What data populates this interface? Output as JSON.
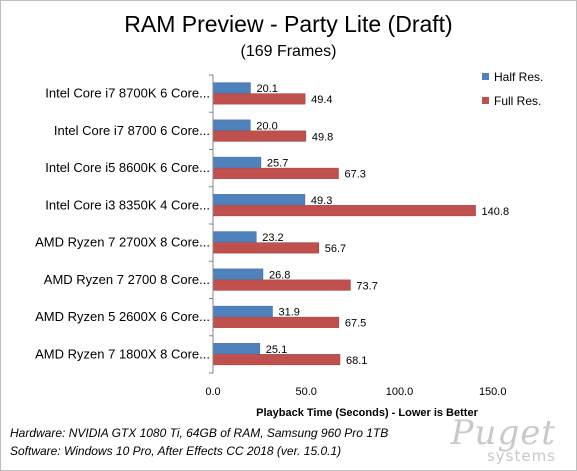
{
  "chart_data": {
    "type": "bar",
    "orientation": "horizontal",
    "title": "RAM Preview - Party Lite (Draft)",
    "subtitle": "(169 Frames)",
    "xlabel": "Playback  Time (Seconds) - Lower is Better",
    "ylabel": "",
    "xlim": [
      0,
      170
    ],
    "xticks": [
      0,
      50,
      100,
      150
    ],
    "xtick_labels": [
      "0.0",
      "50.0",
      "100.0",
      "150.0"
    ],
    "grid": false,
    "legend_position": "right",
    "categories": [
      "Intel Core i7 8700K 6 Core...",
      "Intel Core i7 8700 6 Core...",
      "Intel Core i5 8600K 6 Core...",
      "Intel Core i3 8350K 4 Core...",
      "AMD Ryzen 7 2700X 8 Core...",
      "AMD Ryzen 7 2700 8 Core...",
      "AMD Ryzen 5 2600X 6 Core...",
      "AMD Ryzen 7 1800X 8 Core..."
    ],
    "series": [
      {
        "name": "Half Res.",
        "color": "#4f81bd",
        "values": [
          20.1,
          20.0,
          25.7,
          49.3,
          23.2,
          26.8,
          31.9,
          25.1
        ]
      },
      {
        "name": "Full Res.",
        "color": "#c0504d",
        "values": [
          49.4,
          49.8,
          67.3,
          140.8,
          56.7,
          73.7,
          67.5,
          68.1
        ]
      }
    ]
  },
  "footer": {
    "hardware": "Hardware: NVIDIA GTX 1080 Ti, 64GB of RAM, Samsung 960 Pro 1TB",
    "software": "Software: Windows 10 Pro, After Effects CC 2018 (ver. 15.0.1)"
  },
  "watermark": {
    "line1": "Puget",
    "line2": "systems"
  }
}
